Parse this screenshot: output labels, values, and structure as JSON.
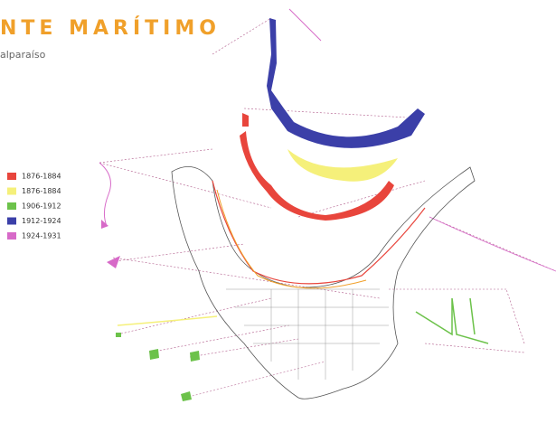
{
  "header": {
    "title": "NTE MARÍTIMO",
    "subtitle": "alparaíso"
  },
  "legend": [
    {
      "label": "1876-1884",
      "color": "#e8453c"
    },
    {
      "label": "1876-1884",
      "color": "#f5f07a"
    },
    {
      "label": "1906-1912",
      "color": "#6cc24a"
    },
    {
      "label": "1912-1924",
      "color": "#3b3fa8"
    },
    {
      "label": "1924-1931",
      "color": "#d76ac8"
    }
  ]
}
